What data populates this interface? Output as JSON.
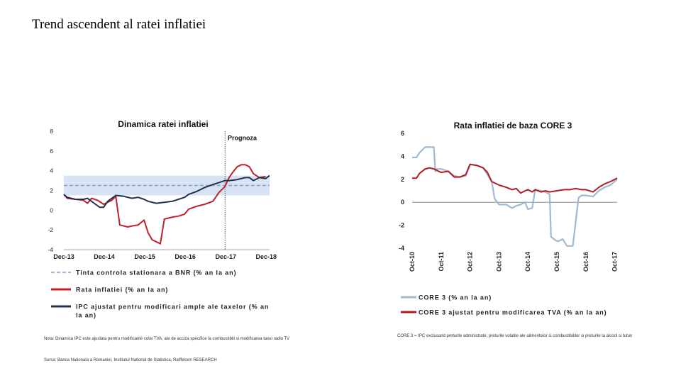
{
  "page": {
    "title": "Trend ascendent al ratei inflatiei",
    "note_left": "Nota: Dinamica IPC este ajustata pentru modificarile cotei TVA, ale de acciza specifice la combustibili si modificarea taxei radio TV",
    "source_left": "Sursa: Banca Nationala a Romaniei, Institutul National de Statistica, Raiffeisen RESEARCH",
    "note_right": "CORE 3 = IPC exclusand preturile administrate, preturile volatile ale alimentelor si combustibililor si preturile la alcool si tutun"
  },
  "chart_data": [
    {
      "type": "line",
      "title": "Dinamica ratei inflatiei",
      "annotation": "Prognoza",
      "ylim": [
        -4,
        8
      ],
      "yticks": [
        "8",
        "6",
        "4",
        "2",
        "0",
        "-2",
        "-4"
      ],
      "ytick_values": [
        8,
        6,
        4,
        2,
        0,
        -2,
        -4
      ],
      "xlim": [
        2013.917,
        2019.0
      ],
      "xticks": [
        "Dec-13",
        "Dec-14",
        "Dec-15",
        "Dec-16",
        "Dec-17",
        "Dec-18"
      ],
      "xtick_values": [
        2013.917,
        2014.917,
        2015.917,
        2016.917,
        2017.917,
        2018.917
      ],
      "forecast_start": 2017.9,
      "target_band": [
        1.5,
        3.5
      ],
      "colors": {
        "band": "#d7e3f3",
        "target": "#7f9fd0",
        "cpi": "#c0202a",
        "adjusted": "#1f3250"
      },
      "legend": [
        {
          "label": "Tinta controla stationara a BNR (% an la an)",
          "style": "dashed",
          "color": "#7f9fd0"
        },
        {
          "label": "Rata inflatiei (% an la an)",
          "style": "solid",
          "color": "#c0202a"
        },
        {
          "label": "IPC ajustat pentru modificari ample ale taxelor (% an la an)",
          "style": "solid",
          "color": "#1f3250"
        }
      ],
      "series": [
        {
          "name": "Tinta controla stationara a BNR (% an la an)",
          "x": [
            2013.917,
            2019.0
          ],
          "y": [
            2.5,
            2.5
          ]
        },
        {
          "name": "Rata inflatiei (% an la an)",
          "x": [
            2013.917,
            2014.0,
            2014.2,
            2014.4,
            2014.5,
            2014.6,
            2014.75,
            2014.9,
            2015.0,
            2015.1,
            2015.2,
            2015.3,
            2015.4,
            2015.5,
            2015.6,
            2015.75,
            2015.9,
            2016.0,
            2016.1,
            2016.2,
            2016.3,
            2016.4,
            2016.5,
            2016.6,
            2016.75,
            2016.9,
            2017.0,
            2017.2,
            2017.4,
            2017.6,
            2017.75,
            2017.9,
            2018.0,
            2018.1,
            2018.2,
            2018.3,
            2018.4,
            2018.5,
            2018.6,
            2018.75,
            2018.9
          ],
          "y": [
            1.6,
            1.2,
            1.1,
            1.0,
            0.7,
            1.2,
            1.0,
            0.6,
            0.8,
            1.0,
            1.4,
            -1.5,
            -1.6,
            -1.7,
            -1.6,
            -1.5,
            -1.0,
            -2.3,
            -3.0,
            -3.2,
            -3.4,
            -0.9,
            -0.8,
            -0.7,
            -0.6,
            -0.4,
            0.1,
            0.4,
            0.6,
            0.9,
            1.8,
            2.4,
            3.3,
            3.9,
            4.4,
            4.6,
            4.6,
            4.4,
            3.7,
            3.3,
            3.4
          ]
        },
        {
          "name": "IPC ajustat pentru modificari ample ale taxelor (% an la an)",
          "x": [
            2013.917,
            2014.0,
            2014.2,
            2014.4,
            2014.5,
            2014.7,
            2014.8,
            2014.9,
            2015.0,
            2015.2,
            2015.4,
            2015.6,
            2015.75,
            2015.9,
            2016.0,
            2016.2,
            2016.4,
            2016.6,
            2016.75,
            2016.9,
            2017.0,
            2017.2,
            2017.4,
            2017.6,
            2017.75,
            2017.9,
            2018.0,
            2018.2,
            2018.4,
            2018.5,
            2018.6,
            2018.75,
            2018.9,
            2019.0
          ],
          "y": [
            1.6,
            1.3,
            1.1,
            1.1,
            1.2,
            0.6,
            0.3,
            0.3,
            0.9,
            1.5,
            1.4,
            1.2,
            1.3,
            1.1,
            0.9,
            0.7,
            0.8,
            0.9,
            1.1,
            1.3,
            1.6,
            1.9,
            2.3,
            2.6,
            2.8,
            3.0,
            3.0,
            3.1,
            3.3,
            3.3,
            3.0,
            3.3,
            3.2,
            3.5
          ]
        }
      ]
    },
    {
      "type": "line",
      "title": "Rata inflatiei de baza CORE 3",
      "ylim": [
        -4,
        6
      ],
      "yticks": [
        "6",
        "4",
        "2",
        "0",
        "-2",
        "-4"
      ],
      "ytick_values": [
        6,
        4,
        2,
        0,
        -2,
        -4
      ],
      "xlim": [
        2010.75,
        2017.833
      ],
      "xticks": [
        "Oct-10",
        "Oct-11",
        "Oct-12",
        "Oct-13",
        "Oct-14",
        "Oct-15",
        "Oct-16",
        "Oct-17"
      ],
      "xtick_values": [
        2010.75,
        2011.75,
        2012.75,
        2013.75,
        2014.75,
        2015.75,
        2016.75,
        2017.75
      ],
      "colors": {
        "core3": "#9fbad2",
        "adjusted": "#b01c24"
      },
      "legend": [
        {
          "label": "CORE 3 (% an la an)",
          "color": "#9fbad2"
        },
        {
          "label": "CORE 3 ajustat pentru modificarea TVA (% an la an)",
          "color": "#b01c24"
        }
      ],
      "series": [
        {
          "name": "CORE 3 (% an la an)",
          "x": [
            2010.75,
            2010.9,
            2011.0,
            2011.2,
            2011.35,
            2011.5,
            2011.55,
            2011.6,
            2011.75,
            2012.0,
            2012.2,
            2012.4,
            2012.6,
            2012.75,
            2013.0,
            2013.2,
            2013.35,
            2013.5,
            2013.6,
            2013.75,
            2013.9,
            2014.0,
            2014.2,
            2014.35,
            2014.5,
            2014.65,
            2014.75,
            2014.9,
            2015.0,
            2015.2,
            2015.35,
            2015.5,
            2015.55,
            2015.7,
            2015.8,
            2015.95,
            2016.1,
            2016.3,
            2016.5,
            2016.6,
            2016.75,
            2017.0,
            2017.2,
            2017.4,
            2017.6,
            2017.833
          ],
          "y": [
            3.9,
            3.9,
            4.3,
            4.8,
            4.8,
            4.8,
            2.7,
            2.9,
            2.9,
            2.7,
            2.3,
            2.2,
            2.3,
            3.3,
            3.2,
            3.0,
            2.4,
            1.8,
            0.3,
            -0.2,
            -0.2,
            -0.2,
            -0.5,
            -0.3,
            -0.2,
            0.0,
            -0.6,
            -0.5,
            1.1,
            1.0,
            0.9,
            0.7,
            -3.0,
            -3.3,
            -3.4,
            -3.2,
            -3.8,
            -3.8,
            0.4,
            0.6,
            0.6,
            0.5,
            1.0,
            1.3,
            1.5,
            2.0
          ]
        },
        {
          "name": "CORE 3 ajustat pentru modificarea TVA (% an la an)",
          "x": [
            2010.75,
            2010.9,
            2011.0,
            2011.2,
            2011.35,
            2011.5,
            2011.75,
            2012.0,
            2012.2,
            2012.4,
            2012.6,
            2012.75,
            2013.0,
            2013.2,
            2013.35,
            2013.5,
            2013.75,
            2014.0,
            2014.2,
            2014.35,
            2014.5,
            2014.65,
            2014.75,
            2014.9,
            2015.0,
            2015.2,
            2015.35,
            2015.5,
            2015.75,
            2016.0,
            2016.2,
            2016.4,
            2016.6,
            2016.75,
            2017.0,
            2017.2,
            2017.4,
            2017.6,
            2017.833
          ],
          "y": [
            2.1,
            2.1,
            2.5,
            2.9,
            3.0,
            2.9,
            2.6,
            2.7,
            2.2,
            2.2,
            2.4,
            3.3,
            3.2,
            3.0,
            2.6,
            1.8,
            1.5,
            1.3,
            1.1,
            1.2,
            0.8,
            1.0,
            1.1,
            0.9,
            1.1,
            0.9,
            1.0,
            0.9,
            1.0,
            1.1,
            1.1,
            1.2,
            1.1,
            1.1,
            0.9,
            1.3,
            1.6,
            1.8,
            2.1
          ]
        }
      ]
    }
  ]
}
